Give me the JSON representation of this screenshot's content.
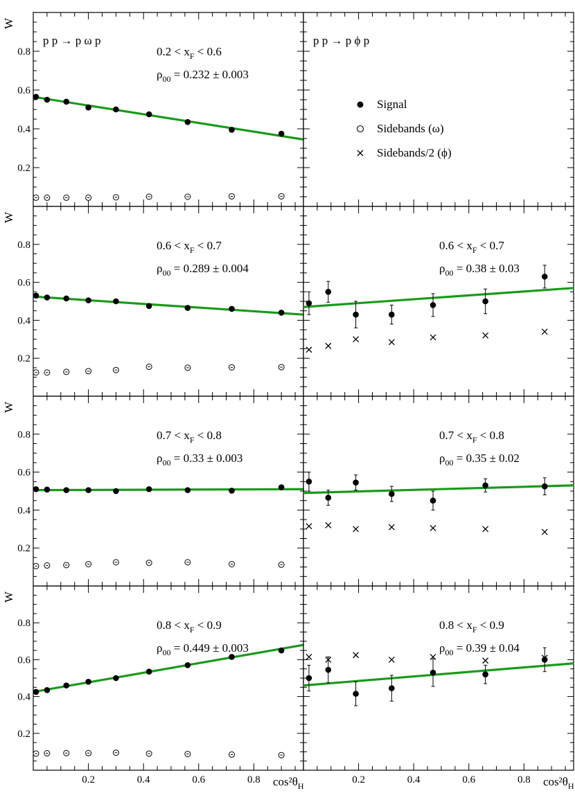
{
  "chart_data": {
    "type": "scatter",
    "layout": "4 rows x 2 columns grid",
    "ylabel": "W",
    "xlabel": "cos²θ",
    "xlabel_sub": "H",
    "xlim": [
      0,
      0.98
    ],
    "ylim": [
      0,
      1.0
    ],
    "x_ticks": [
      "0.2",
      "0.4",
      "0.6",
      "0.8"
    ],
    "y_ticks": [
      "0.2",
      "0.4",
      "0.6",
      "0.8"
    ],
    "fit_color": "#1a9a1a",
    "legend": {
      "placement": "top-right panel",
      "entries": [
        {
          "marker": "filled-circle",
          "label": "Signal"
        },
        {
          "marker": "open-circle",
          "label": "Sidebands (ω)"
        },
        {
          "marker": "cross",
          "label": "Sidebands/2 (ϕ)"
        }
      ]
    },
    "panels": [
      {
        "id": "omega-1",
        "reaction": "p p → p ω p",
        "xf_range": "0.2 < x_F < 0.6",
        "rho_label": "ρ",
        "rho_sub": "00",
        "rho_value": "= 0.232 ± 0.003",
        "signal": {
          "x": [
            0.01,
            0.05,
            0.12,
            0.2,
            0.3,
            0.42,
            0.56,
            0.72,
            0.9
          ],
          "y": [
            0.565,
            0.55,
            0.54,
            0.51,
            0.5,
            0.475,
            0.435,
            0.395,
            0.375
          ],
          "err": [
            0.01,
            0.01,
            0.01,
            0.01,
            0.01,
            0.01,
            0.01,
            0.01,
            0.01
          ]
        },
        "sidebands": {
          "marker": "open-circle",
          "x": [
            0.01,
            0.05,
            0.12,
            0.2,
            0.3,
            0.42,
            0.56,
            0.72,
            0.9
          ],
          "y": [
            0.045,
            0.045,
            0.045,
            0.045,
            0.047,
            0.05,
            0.05,
            0.052,
            0.052
          ]
        },
        "fit": {
          "x0": 0.0,
          "y0": 0.565,
          "x1": 0.98,
          "y1": 0.345
        }
      },
      {
        "id": "phi-1",
        "reaction": "p p → p ϕ p",
        "legend_panel": true
      },
      {
        "id": "omega-2",
        "xf_range": "0.6 < x_F < 0.7",
        "rho_label": "ρ",
        "rho_sub": "00",
        "rho_value": "= 0.289 ± 0.004",
        "signal": {
          "x": [
            0.01,
            0.05,
            0.12,
            0.2,
            0.3,
            0.42,
            0.56,
            0.72,
            0.9
          ],
          "y": [
            0.53,
            0.52,
            0.515,
            0.505,
            0.5,
            0.475,
            0.465,
            0.46,
            0.44
          ],
          "err": [
            0.01,
            0.01,
            0.01,
            0.01,
            0.01,
            0.01,
            0.01,
            0.01,
            0.01
          ]
        },
        "sidebands": {
          "marker": "open-circle",
          "x": [
            0.01,
            0.05,
            0.12,
            0.2,
            0.3,
            0.42,
            0.56,
            0.72,
            0.9
          ],
          "y": [
            0.125,
            0.125,
            0.128,
            0.132,
            0.138,
            0.155,
            0.15,
            0.152,
            0.153
          ]
        },
        "fit": {
          "x0": 0.0,
          "y0": 0.525,
          "x1": 0.98,
          "y1": 0.43
        }
      },
      {
        "id": "phi-2",
        "xf_range": "0.6 < x_F < 0.7",
        "rho_label": "ρ",
        "rho_sub": "00",
        "rho_value": "= 0.38 ± 0.03",
        "signal": {
          "x": [
            0.02,
            0.09,
            0.19,
            0.32,
            0.47,
            0.66,
            0.875
          ],
          "y": [
            0.49,
            0.55,
            0.43,
            0.43,
            0.48,
            0.5,
            0.63
          ],
          "err": [
            0.06,
            0.055,
            0.07,
            0.05,
            0.06,
            0.065,
            0.06
          ]
        },
        "sidebands": {
          "marker": "cross",
          "x": [
            0.02,
            0.09,
            0.19,
            0.32,
            0.47,
            0.66,
            0.875
          ],
          "y": [
            0.245,
            0.265,
            0.3,
            0.285,
            0.31,
            0.32,
            0.34
          ]
        },
        "fit": {
          "x0": 0.0,
          "y0": 0.47,
          "x1": 0.98,
          "y1": 0.57
        }
      },
      {
        "id": "omega-3",
        "xf_range": "0.7 < x_F < 0.8",
        "rho_label": "ρ",
        "rho_sub": "00",
        "rho_value": "= 0.33 ± 0.003",
        "signal": {
          "x": [
            0.01,
            0.05,
            0.12,
            0.2,
            0.3,
            0.42,
            0.56,
            0.72,
            0.9
          ],
          "y": [
            0.51,
            0.508,
            0.505,
            0.505,
            0.5,
            0.51,
            0.505,
            0.502,
            0.52
          ],
          "err": [
            0.01,
            0.01,
            0.01,
            0.01,
            0.01,
            0.01,
            0.01,
            0.01,
            0.01
          ]
        },
        "sidebands": {
          "marker": "open-circle",
          "x": [
            0.01,
            0.05,
            0.12,
            0.2,
            0.3,
            0.42,
            0.56,
            0.72,
            0.9
          ],
          "y": [
            0.105,
            0.108,
            0.11,
            0.115,
            0.125,
            0.122,
            0.125,
            0.115,
            0.112
          ]
        },
        "fit": {
          "x0": 0.0,
          "y0": 0.505,
          "x1": 0.98,
          "y1": 0.51
        }
      },
      {
        "id": "phi-3",
        "xf_range": "0.7 < x_F < 0.8",
        "rho_label": "ρ",
        "rho_sub": "00",
        "rho_value": "= 0.35 ± 0.02",
        "signal": {
          "x": [
            0.02,
            0.09,
            0.19,
            0.32,
            0.47,
            0.66,
            0.875
          ],
          "y": [
            0.55,
            0.465,
            0.545,
            0.485,
            0.45,
            0.53,
            0.525
          ],
          "err": [
            0.05,
            0.04,
            0.04,
            0.04,
            0.05,
            0.035,
            0.045
          ]
        },
        "sidebands": {
          "marker": "cross",
          "x": [
            0.02,
            0.09,
            0.19,
            0.32,
            0.47,
            0.66,
            0.875
          ],
          "y": [
            0.315,
            0.32,
            0.3,
            0.31,
            0.305,
            0.3,
            0.285
          ]
        },
        "fit": {
          "x0": 0.0,
          "y0": 0.49,
          "x1": 0.98,
          "y1": 0.53
        }
      },
      {
        "id": "omega-4",
        "xf_range": "0.8 < x_F < 0.9",
        "rho_label": "ρ",
        "rho_sub": "00",
        "rho_value": "= 0.449 ± 0.003",
        "signal": {
          "x": [
            0.01,
            0.05,
            0.12,
            0.2,
            0.3,
            0.42,
            0.56,
            0.72,
            0.9
          ],
          "y": [
            0.425,
            0.435,
            0.46,
            0.48,
            0.5,
            0.535,
            0.57,
            0.615,
            0.65
          ],
          "err": [
            0.01,
            0.01,
            0.01,
            0.01,
            0.01,
            0.01,
            0.01,
            0.01,
            0.01
          ]
        },
        "sidebands": {
          "marker": "open-circle",
          "x": [
            0.01,
            0.05,
            0.12,
            0.2,
            0.3,
            0.42,
            0.56,
            0.72,
            0.9
          ],
          "y": [
            0.09,
            0.092,
            0.093,
            0.093,
            0.095,
            0.09,
            0.088,
            0.085,
            0.082
          ]
        },
        "fit": {
          "x0": 0.0,
          "y0": 0.425,
          "x1": 0.98,
          "y1": 0.68
        }
      },
      {
        "id": "phi-4",
        "xf_range": "0.8 < x_F < 0.9",
        "rho_label": "ρ",
        "rho_sub": "00",
        "rho_value": "= 0.39 ± 0.04",
        "signal": {
          "x": [
            0.02,
            0.09,
            0.19,
            0.32,
            0.47,
            0.66,
            0.875
          ],
          "y": [
            0.5,
            0.545,
            0.415,
            0.445,
            0.53,
            0.52,
            0.6
          ],
          "err": [
            0.07,
            0.07,
            0.065,
            0.07,
            0.075,
            0.05,
            0.065
          ]
        },
        "sidebands": {
          "marker": "cross",
          "x": [
            0.02,
            0.09,
            0.19,
            0.32,
            0.47,
            0.66,
            0.875
          ],
          "y": [
            0.615,
            0.6,
            0.625,
            0.6,
            0.615,
            0.595,
            0.61
          ]
        },
        "fit": {
          "x0": 0.0,
          "y0": 0.46,
          "x1": 0.98,
          "y1": 0.58
        }
      }
    ]
  }
}
